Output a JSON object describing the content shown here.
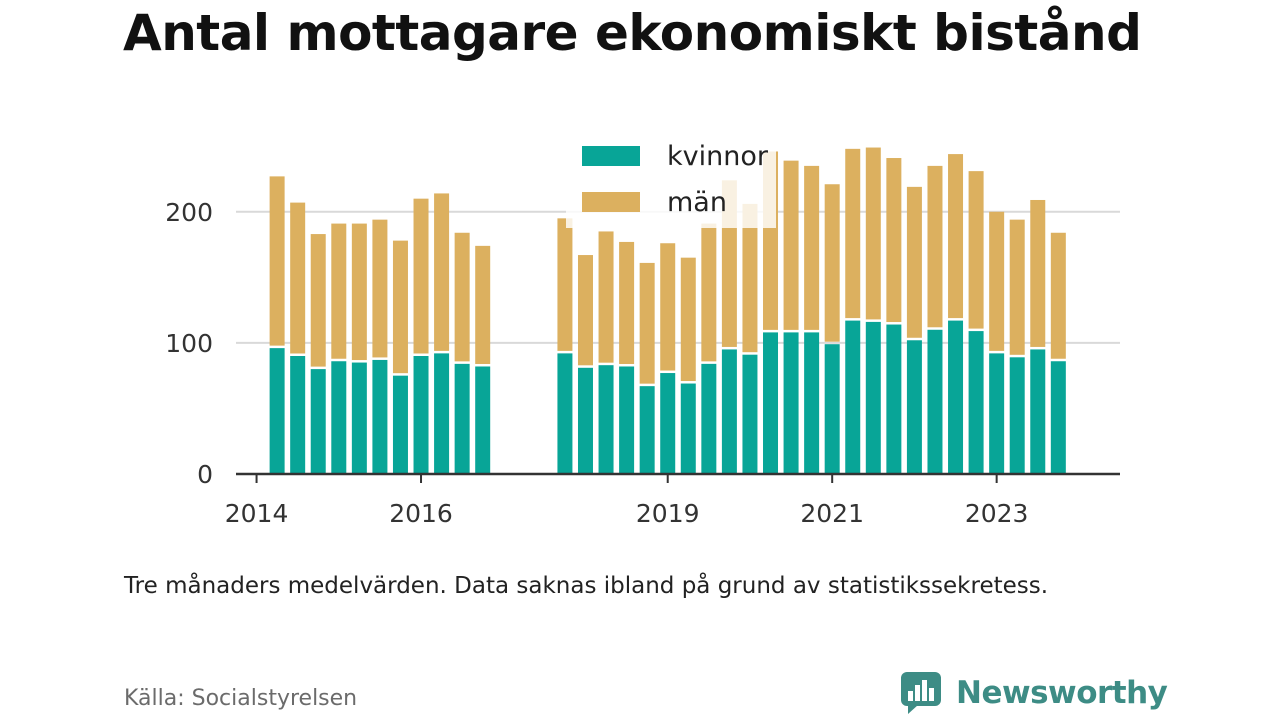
{
  "title": "Antal mottagare ekonomiskt bistånd",
  "note": "Tre månaders medelvärden. Data saknas ibland på grund av statistikssekretess.",
  "source": "Källa: Socialstyrelsen",
  "brand": "Newsworthy",
  "colors": {
    "kvinnor": "#08a597",
    "man": "#dcb05f",
    "grid": "#d9d9d9",
    "axis": "#333333"
  },
  "chart_data": {
    "type": "bar",
    "stacked": true,
    "legend": {
      "placement": "top-center",
      "entries": [
        "kvinnor",
        "män"
      ]
    },
    "xticks": [
      "2014",
      "2016",
      "2019",
      "2021",
      "2023"
    ],
    "xtick_positions": [
      2014.0,
      2016.0,
      2019.0,
      2021.0,
      2023.0
    ],
    "yticks": [
      "0",
      "100",
      "200"
    ],
    "ylim": [
      0,
      270
    ],
    "xlim": [
      2013.75,
      2024.5
    ],
    "grid": true,
    "x": [
      2014.25,
      2014.5,
      2014.75,
      2015.0,
      2015.25,
      2015.5,
      2015.75,
      2016.0,
      2016.25,
      2016.5,
      2016.75,
      2017.75,
      2018.0,
      2018.25,
      2018.5,
      2018.75,
      2019.0,
      2019.25,
      2019.5,
      2019.75,
      2020.0,
      2020.25,
      2020.5,
      2020.75,
      2021.0,
      2021.25,
      2021.5,
      2021.75,
      2022.0,
      2022.25,
      2022.5,
      2022.75,
      2023.0,
      2023.25,
      2023.5,
      2023.75
    ],
    "series": [
      {
        "name": "kvinnor",
        "values": [
          96,
          90,
          80,
          86,
          85,
          87,
          75,
          90,
          92,
          84,
          82,
          92,
          81,
          83,
          82,
          67,
          77,
          69,
          84,
          95,
          91,
          108,
          108,
          108,
          99,
          117,
          116,
          114,
          102,
          110,
          117,
          109,
          92,
          89,
          95,
          86
        ]
      },
      {
        "name": "män",
        "values": [
          131,
          117,
          103,
          105,
          106,
          107,
          103,
          120,
          122,
          100,
          92,
          103,
          86,
          102,
          95,
          94,
          99,
          96,
          107,
          129,
          115,
          138,
          131,
          127,
          122,
          131,
          133,
          127,
          117,
          125,
          127,
          122,
          108,
          105,
          114,
          98
        ]
      }
    ]
  }
}
